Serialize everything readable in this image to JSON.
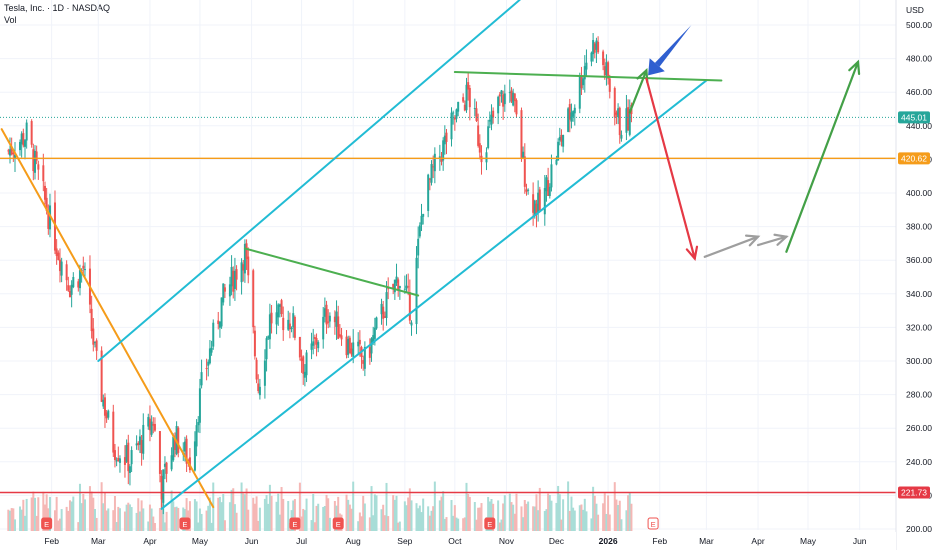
{
  "header": {
    "symbol_line": "Tesla, Inc. · 1D · NASDAQ",
    "volume_label": "Vol",
    "currency": "USD"
  },
  "colors": {
    "up": "#26a69a",
    "down": "#ef5350",
    "channel": "#22bcd4",
    "downtrend": "#f59c1a",
    "neckline": "#4caf50",
    "bear_path": "#e53945",
    "sideways_path": "#9e9e9e",
    "bull_path": "#43a047",
    "pointer": "#2f5fd0",
    "support": "#f59c1a",
    "low_line": "#e53945"
  },
  "chart_data": {
    "type": "candlestick",
    "y_axis": {
      "ticks": [
        200,
        220,
        240,
        260,
        280,
        300,
        320,
        340,
        360,
        380,
        400,
        420,
        440,
        460,
        480,
        500
      ],
      "range": [
        197,
        505
      ]
    },
    "x_axis": {
      "labels": [
        "Feb",
        "Mar",
        "Apr",
        "May",
        "Jun",
        "Jul",
        "Aug",
        "Sep",
        "Oct",
        "Nov",
        "Dec",
        "2026",
        "Feb",
        "Mar",
        "Apr",
        "May",
        "Jun"
      ]
    },
    "price_levels": [
      {
        "label": "445.01",
        "value": 445.01,
        "role": "last-price"
      },
      {
        "label": "420.62",
        "value": 420.62,
        "role": "support"
      },
      {
        "label": "221.73",
        "value": 221.73,
        "role": "low"
      }
    ],
    "price_path": [
      {
        "date": "2025-01-06",
        "close": 425
      },
      {
        "date": "2025-01-17",
        "close": 435
      },
      {
        "date": "2025-01-28",
        "close": 395
      },
      {
        "date": "2025-02-05",
        "close": 365
      },
      {
        "date": "2025-02-12",
        "close": 345
      },
      {
        "date": "2025-02-20",
        "close": 355
      },
      {
        "date": "2025-03-01",
        "close": 290
      },
      {
        "date": "2025-03-10",
        "close": 250
      },
      {
        "date": "2025-03-20",
        "close": 240
      },
      {
        "date": "2025-04-03",
        "close": 265
      },
      {
        "date": "2025-04-08",
        "close": 225
      },
      {
        "date": "2025-04-16",
        "close": 255
      },
      {
        "date": "2025-04-25",
        "close": 240
      },
      {
        "date": "2025-05-02",
        "close": 285
      },
      {
        "date": "2025-05-14",
        "close": 335
      },
      {
        "date": "2025-05-28",
        "close": 365
      },
      {
        "date": "2025-06-05",
        "close": 285
      },
      {
        "date": "2025-06-12",
        "close": 325
      },
      {
        "date": "2025-06-25",
        "close": 325
      },
      {
        "date": "2025-07-03",
        "close": 295
      },
      {
        "date": "2025-07-17",
        "close": 330
      },
      {
        "date": "2025-07-29",
        "close": 310
      },
      {
        "date": "2025-08-08",
        "close": 300
      },
      {
        "date": "2025-08-19",
        "close": 330
      },
      {
        "date": "2025-08-28",
        "close": 350
      },
      {
        "date": "2025-09-05",
        "close": 330
      },
      {
        "date": "2025-09-12",
        "close": 395
      },
      {
        "date": "2025-09-19",
        "close": 415
      },
      {
        "date": "2025-09-29",
        "close": 440
      },
      {
        "date": "2025-10-09",
        "close": 460
      },
      {
        "date": "2025-10-17",
        "close": 425
      },
      {
        "date": "2025-10-28",
        "close": 455
      },
      {
        "date": "2025-11-04",
        "close": 460
      },
      {
        "date": "2025-11-14",
        "close": 400
      },
      {
        "date": "2025-11-21",
        "close": 390
      },
      {
        "date": "2025-12-03",
        "close": 430
      },
      {
        "date": "2025-12-12",
        "close": 455
      },
      {
        "date": "2025-12-19",
        "close": 480
      },
      {
        "date": "2025-12-24",
        "close": 490
      },
      {
        "date": "2025-12-31",
        "close": 470
      },
      {
        "date": "2026-01-08",
        "close": 440
      },
      {
        "date": "2026-01-15",
        "close": 445
      }
    ],
    "drawings": [
      {
        "name": "downtrend-line",
        "points": [
          [
            "2025-01-02",
            438
          ],
          [
            "2025-05-09",
            213
          ]
        ]
      },
      {
        "name": "channel-upper-line",
        "points": [
          [
            "2025-03-01",
            300
          ],
          [
            "2025-11-09",
            515
          ]
        ]
      },
      {
        "name": "channel-lower-line",
        "points": [
          [
            "2025-04-08",
            212
          ],
          [
            "2026-03-01",
            467
          ]
        ]
      },
      {
        "name": "neckline-left",
        "points": [
          [
            "2025-05-28",
            367
          ],
          [
            "2025-09-09",
            339
          ]
        ]
      },
      {
        "name": "neckline-right",
        "points": [
          [
            "2025-10-01",
            472
          ],
          [
            "2026-03-10",
            467
          ]
        ]
      },
      {
        "name": "bull-rebound-arrow",
        "points": [
          [
            "2026-01-14",
            448
          ],
          [
            "2026-01-24",
            473
          ]
        ]
      },
      {
        "name": "bear-drop-arrow",
        "points": [
          [
            "2026-01-24",
            468
          ],
          [
            "2026-02-22",
            361
          ]
        ]
      },
      {
        "name": "sideways-arrow",
        "points": [
          [
            "2026-02-28",
            362
          ],
          [
            "2026-04-01",
            374
          ]
        ]
      },
      {
        "name": "sideways-arrow-2",
        "points": [
          [
            "2026-04-01",
            369
          ],
          [
            "2026-04-18",
            374
          ]
        ]
      },
      {
        "name": "bull-breakout-arrow",
        "points": [
          [
            "2026-04-18",
            365
          ],
          [
            "2026-05-31",
            478
          ]
        ]
      },
      {
        "name": "pointer-arrow",
        "points": [
          [
            "2026-02-20",
            500
          ],
          [
            "2026-01-25",
            470
          ]
        ]
      }
    ],
    "events_dates": [
      "2025-01-29",
      "2025-04-22",
      "2025-06-27",
      "2025-07-23",
      "2025-10-22",
      "2026-01-28"
    ]
  }
}
